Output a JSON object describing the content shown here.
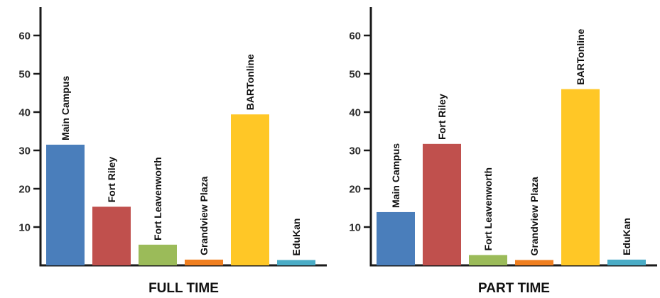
{
  "chart_data": [
    {
      "type": "bar",
      "title": "FULL TIME",
      "categories": [
        "Main Campus",
        "Fort Riley",
        "Fort Leavenworth",
        "Grandview Plaza",
        "BARTonline",
        "EduKan"
      ],
      "values": [
        31.5,
        15.3,
        5.4,
        1.5,
        39.4,
        1.4
      ],
      "colors": [
        "#4a7ebb",
        "#c0504d",
        "#9bbb59",
        "#f07f20",
        "#ffc726",
        "#4aacc6"
      ],
      "ylim": [
        0,
        65
      ],
      "yticks": [
        10,
        20,
        30,
        40,
        50,
        60
      ],
      "ytick_labels": [
        "10",
        "20",
        "30",
        "40",
        "50",
        "60"
      ],
      "grid": false
    },
    {
      "type": "bar",
      "title": "PART TIME",
      "categories": [
        "Main Campus",
        "Fort Riley",
        "Fort Leavenworth",
        "Grandview Plaza",
        "BARTonline",
        "EduKan"
      ],
      "values": [
        13.9,
        31.7,
        2.7,
        1.4,
        46.0,
        1.5
      ],
      "colors": [
        "#4a7ebb",
        "#c0504d",
        "#9bbb59",
        "#f07f20",
        "#ffc726",
        "#4aacc6"
      ],
      "ylim": [
        0,
        65
      ],
      "yticks": [
        10,
        20,
        30,
        40,
        50,
        60
      ],
      "ytick_labels": [
        "10",
        "20",
        "30",
        "40",
        "50",
        "60"
      ],
      "grid": false
    }
  ]
}
